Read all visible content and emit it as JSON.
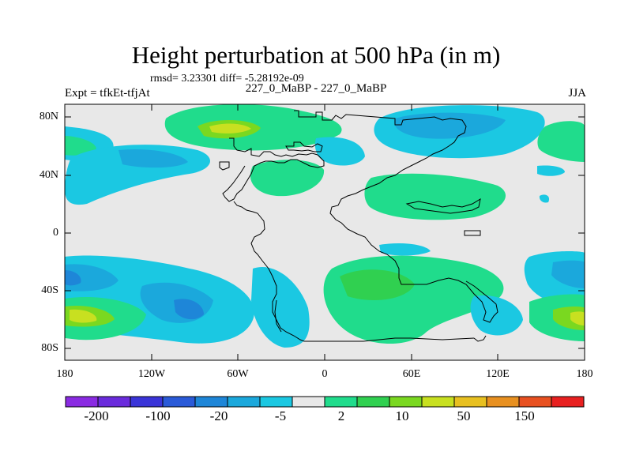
{
  "title": "Height perturbation at 500 hPa (in m)",
  "stats": "rmsd= 3.23301 diff= -5.28192e-09",
  "experiment": "Expt = tfkEt-tfjAt",
  "case": "227_0_MaBP - 227_0_MaBP",
  "season": "JJA",
  "map": {
    "lat_ticks": [
      "80N",
      "40N",
      "0",
      "40S",
      "80S"
    ],
    "lon_ticks": [
      "180",
      "120W",
      "60W",
      "0",
      "60E",
      "120E",
      "180"
    ],
    "background_color": "#e8e8e8"
  },
  "colorbar": {
    "colors": [
      "#8a2be2",
      "#6a2bdc",
      "#3a34d8",
      "#2a5ad8",
      "#1e86d8",
      "#1ba8dc",
      "#1bc8e2",
      "#e8e8e8",
      "#20dc8c",
      "#30d050",
      "#7ad820",
      "#c8e020",
      "#e8c020",
      "#e89020",
      "#e85020",
      "#e82020"
    ],
    "labels": [
      "-200",
      "-100",
      "-20",
      "-5",
      "2",
      "10",
      "50",
      "150"
    ]
  }
}
